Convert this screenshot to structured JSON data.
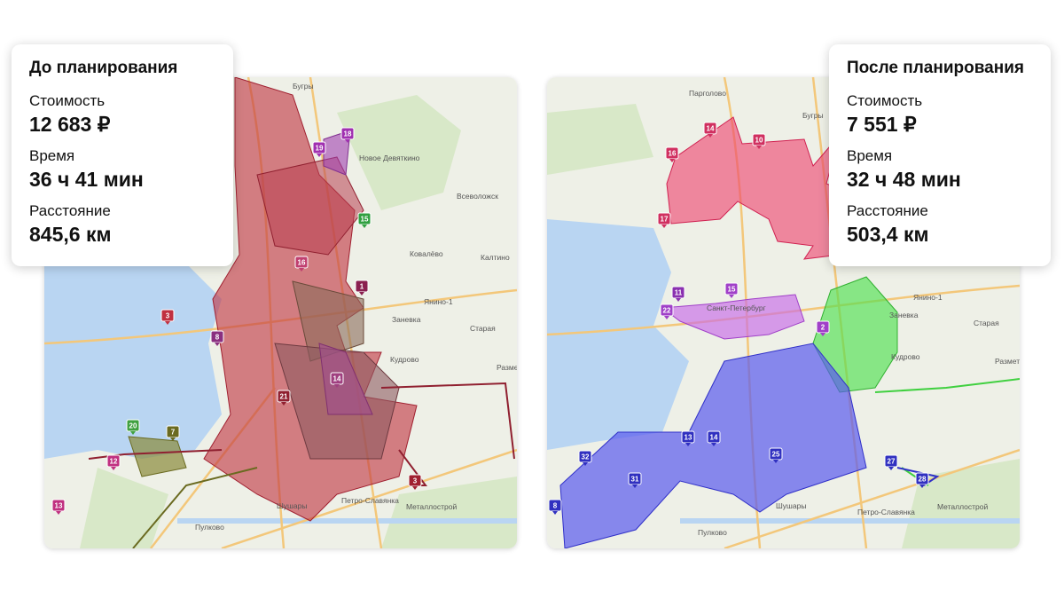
{
  "panels": [
    {
      "title": "До планирования",
      "metrics": [
        {
          "label": "Стоимость",
          "value": "12 683 ₽"
        },
        {
          "label": "Время",
          "value": "36 ч 41 мин"
        },
        {
          "label": "Расстояние",
          "value": "845,6 км"
        }
      ],
      "map": {
        "places": [
          "Бугры",
          "Новое Девяткино",
          "Всеволожск",
          "Ковалёво",
          "Калтино",
          "Янино-1",
          "Заневка",
          "Старая",
          "Кудрово",
          "Разметелево",
          "Металлострой",
          "Петро-Славянка",
          "Шушары",
          "Пулково"
        ],
        "markers": [
          "19",
          "18",
          "15",
          "1",
          "3",
          "8",
          "20",
          "7",
          "12",
          "13",
          "3",
          "16",
          "14",
          "21"
        ]
      }
    },
    {
      "title": "После планирования",
      "metrics": [
        {
          "label": "Стоимость",
          "value": "7 551 ₽"
        },
        {
          "label": "Время",
          "value": "32 ч 48 мин"
        },
        {
          "label": "Расстояние",
          "value": "503,4 км"
        }
      ],
      "map": {
        "places": [
          "Парголово",
          "Бугры",
          "Санкт-Петербург",
          "Янино-1",
          "Заневка",
          "Старая",
          "Кудрово",
          "Разметелево",
          "Металлострой",
          "Петро-Славянка",
          "Шушары",
          "Пулково"
        ],
        "markers": [
          "14",
          "10",
          "16",
          "17",
          "11",
          "15",
          "22",
          "32",
          "31",
          "8",
          "28",
          "27",
          "13",
          "14",
          "25",
          "2"
        ]
      }
    }
  ]
}
